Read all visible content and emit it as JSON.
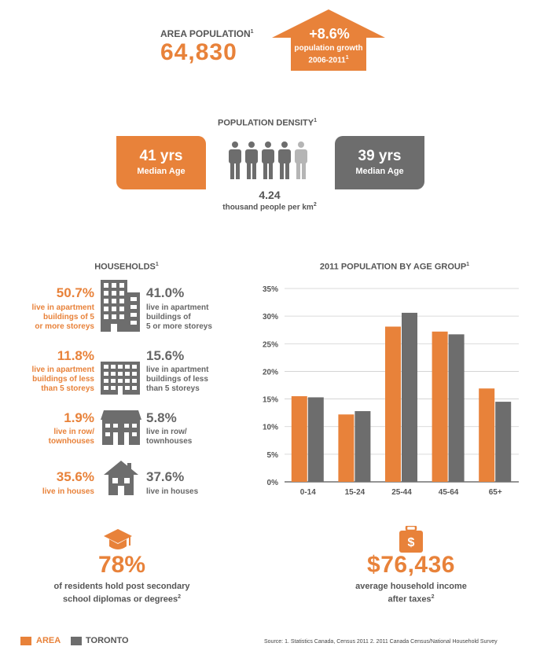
{
  "colors": {
    "area": "#E8823A",
    "toronto": "#6D6D6D",
    "text": "#555555",
    "person_light": "#B5B5B5"
  },
  "header": {
    "area_population_label": "AREA POPULATION",
    "area_population_value": "64,830",
    "growth_value": "+8.6%",
    "growth_label_line1": "population growth",
    "growth_label_line2": "2006-2011"
  },
  "density": {
    "title": "POPULATION DENSITY",
    "area_age_value": "41 yrs",
    "area_age_label": "Median Age",
    "toronto_age_value": "39 yrs",
    "toronto_age_label": "Median Age",
    "value": "4.24",
    "unit": "thousand people per km",
    "unit_exp": "2",
    "people_icons": {
      "icon": "person-icon",
      "filled": 4.24,
      "total": 5
    }
  },
  "households": {
    "title": "HOUSEHOLDS",
    "rows": [
      {
        "icon": "highrise-building-icon",
        "area_pct": "50.7%",
        "area_desc": [
          "live in apartment",
          "buildings of 5",
          "or more storeys"
        ],
        "toronto_pct": "41.0%",
        "toronto_desc": [
          "live in apartment",
          "buildings of",
          "5 or more storeys"
        ]
      },
      {
        "icon": "lowrise-building-icon",
        "area_pct": "11.8%",
        "area_desc": [
          "live in apartment",
          "buildings of less",
          "than 5 storeys"
        ],
        "toronto_pct": "15.6%",
        "toronto_desc": [
          "live in apartment",
          "buildings of less",
          "than 5 storeys"
        ]
      },
      {
        "icon": "townhouse-icon",
        "area_pct": "1.9%",
        "area_desc": [
          "live in row/",
          "townhouses"
        ],
        "toronto_pct": "5.8%",
        "toronto_desc": [
          "live in row/",
          "townhouses"
        ]
      },
      {
        "icon": "house-icon",
        "area_pct": "35.6%",
        "area_desc": [
          "live in houses"
        ],
        "toronto_pct": "37.6%",
        "toronto_desc": [
          "live in houses"
        ]
      }
    ]
  },
  "chart_data": {
    "type": "bar",
    "title": "2011 POPULATION BY AGE GROUP",
    "categories": [
      "0-14",
      "15-24",
      "25-44",
      "45-64",
      "65+"
    ],
    "series": [
      {
        "name": "AREA",
        "values": [
          15.5,
          12.2,
          28.1,
          27.2,
          16.9
        ]
      },
      {
        "name": "TORONTO",
        "values": [
          15.3,
          12.8,
          30.6,
          26.7,
          14.5
        ]
      }
    ],
    "ylim": [
      0,
      35
    ],
    "yticks": [
      "0%",
      "5%",
      "10%",
      "15%",
      "20%",
      "25%",
      "30%",
      "35%"
    ],
    "grid": true,
    "xlabel": "",
    "ylabel": ""
  },
  "education": {
    "icon": "graduation-cap-icon",
    "value": "78%",
    "desc_line1": "of residents hold post secondary",
    "desc_line2": "school diplomas or degrees"
  },
  "income": {
    "icon": "money-bag-icon",
    "value": "$76,436",
    "desc_line1": "average household income",
    "desc_line2": "after taxes"
  },
  "legend": [
    {
      "label": "AREA"
    },
    {
      "label": "TORONTO"
    }
  ],
  "source": "Source: 1. Statistics Canada, Census 2011 2. 2011 Canada Census/National Household Survey",
  "footnotes": {
    "one": "1",
    "two": "2"
  }
}
